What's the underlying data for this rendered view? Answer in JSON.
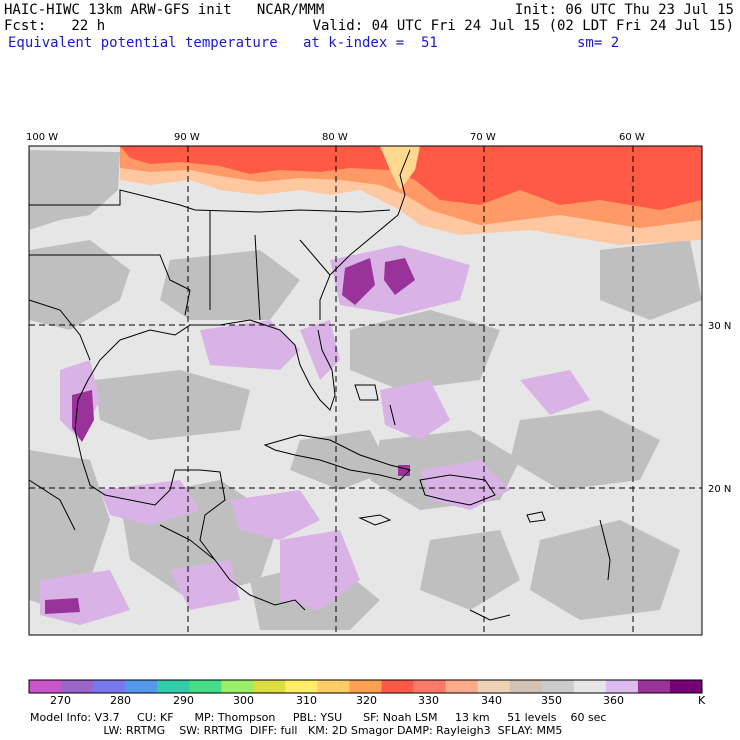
{
  "header": {
    "line1_left": "HAIC-HIWC 13km ARW-GFS init   NCAR/MMM",
    "line1_right": "Init: 06 UTC Thu 23 Jul 15",
    "line2_left": "Fcst:   22 h",
    "line2_right": "Valid: 04 UTC Fri 24 Jul 15 (02 LDT Fri 24 Jul 15)",
    "line3_field": "Equivalent potential temperature",
    "line3_level": "at k-index =  51",
    "line3_smooth": "sm= 2"
  },
  "map": {
    "lon_labels": [
      "100 W",
      "90 W",
      "80 W",
      "70 W",
      "60 W"
    ],
    "lat_labels": [
      "30 N",
      "20 N"
    ],
    "colors": {
      "background": "#e6e6e6",
      "land_gray": "#bfbfbf",
      "light_purple": "#d9b3e6",
      "purple": "#993399",
      "warm_red": "#ff5a46",
      "orange": "#ff9966",
      "peach": "#ffc8a0",
      "border": "#000000"
    }
  },
  "colorbar": {
    "labels": [
      "270",
      "280",
      "290",
      "300",
      "310",
      "320",
      "330",
      "340",
      "350",
      "360"
    ],
    "unit": "K",
    "colors": [
      "#cc55cc",
      "#9966cc",
      "#7777ee",
      "#5599ee",
      "#33ccaa",
      "#44dd88",
      "#99ee66",
      "#dddd44",
      "#ffee66",
      "#ffcc66",
      "#ffa050",
      "#ff5a46",
      "#ff7a66",
      "#ffaa88",
      "#eed2b8",
      "#d2c2b4",
      "#cccccc",
      "#e6e6e6",
      "#ddbbee",
      "#993399",
      "#770077"
    ]
  },
  "footer": {
    "line1": "Model Info: V3.7     CU: KF      MP: Thompson     PBL: YSU      SF: Noah LSM     13 km     51 levels    60 sec",
    "line2": "                     LW: RRTMG    SW: RRTMG  DIFF: full   KM: 2D Smagor DAMP: Rayleigh3  SFLAY: MM5"
  }
}
